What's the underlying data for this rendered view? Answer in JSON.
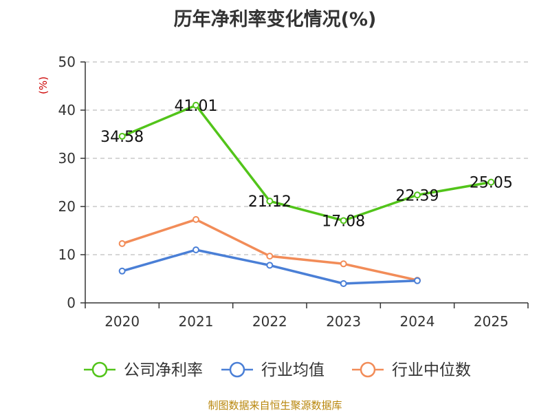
{
  "chart_data": {
    "type": "line",
    "title": "历年净利率变化情况(%)",
    "ylabel": "(%)",
    "xlabel": "",
    "categories": [
      "2020",
      "2021",
      "2022",
      "2023",
      "2024",
      "2025"
    ],
    "ylim": [
      0,
      50
    ],
    "yticks": [
      0,
      10,
      20,
      30,
      40,
      50
    ],
    "grid": true,
    "legend_position": "bottom",
    "series": [
      {
        "name": "公司净利率",
        "color": "#52c41a",
        "values": [
          34.58,
          41.01,
          21.12,
          17.08,
          22.39,
          25.05
        ],
        "show_labels": true,
        "labels": [
          "34.58",
          "41.01",
          "21.12",
          "17.08",
          "22.39",
          "25.05"
        ]
      },
      {
        "name": "行业均值",
        "color": "#4a7fd6",
        "values": [
          6.6,
          11.0,
          7.8,
          4.0,
          4.6,
          null
        ],
        "show_labels": false
      },
      {
        "name": "行业中位数",
        "color": "#f28c58",
        "values": [
          12.3,
          17.3,
          9.7,
          8.1,
          4.7,
          null
        ],
        "show_labels": false
      }
    ]
  },
  "source": "制图数据来自恒生聚源数据库"
}
